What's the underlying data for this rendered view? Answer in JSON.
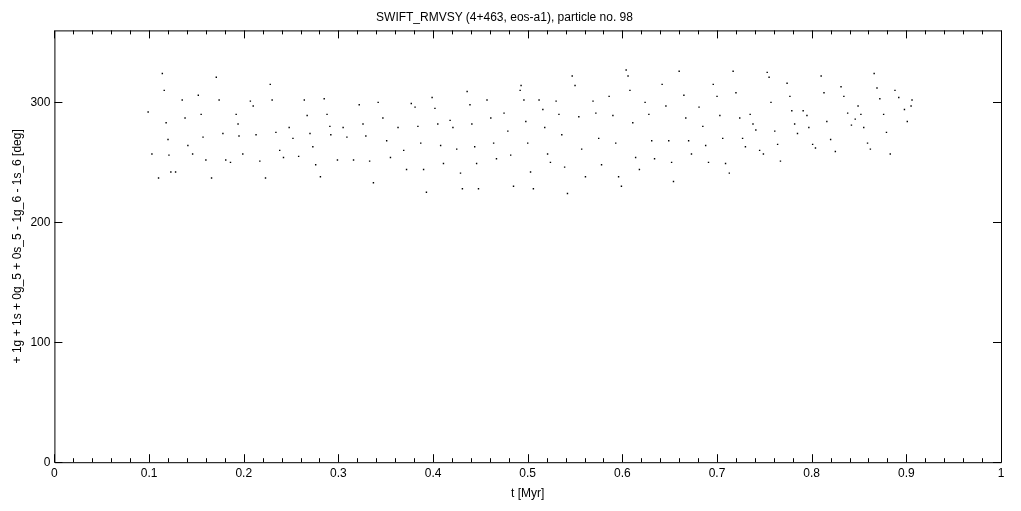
{
  "chart_data": {
    "type": "scatter",
    "title": "SWIFT_RMVSY (4+463, eos-a1), particle no. 98",
    "xlabel": "t [Myr]",
    "ylabel": "+ 1g + 1s + 0g_5 + 0s_5 - 1g_6 - 1s_6 [deg]",
    "xlim": [
      0,
      1
    ],
    "ylim": [
      0,
      360
    ],
    "xticks": [
      0,
      {
        "value": 0.02,
        "label": null
      },
      {
        "value": 0.04,
        "label": null
      },
      {
        "value": 0.06,
        "label": null
      },
      {
        "value": 0.08,
        "label": null
      },
      0.1,
      {
        "value": 0.12,
        "label": null
      },
      {
        "value": 0.14,
        "label": null
      },
      {
        "value": 0.16,
        "label": null
      },
      {
        "value": 0.18,
        "label": null
      },
      0.2,
      {
        "value": 0.22,
        "label": null
      },
      {
        "value": 0.24,
        "label": null
      },
      {
        "value": 0.26,
        "label": null
      },
      {
        "value": 0.28,
        "label": null
      },
      0.3,
      {
        "value": 0.32,
        "label": null
      },
      {
        "value": 0.34,
        "label": null
      },
      {
        "value": 0.36,
        "label": null
      },
      {
        "value": 0.38,
        "label": null
      },
      0.4,
      {
        "value": 0.42,
        "label": null
      },
      {
        "value": 0.44,
        "label": null
      },
      {
        "value": 0.46,
        "label": null
      },
      {
        "value": 0.48,
        "label": null
      },
      0.5,
      {
        "value": 0.52,
        "label": null
      },
      {
        "value": 0.54,
        "label": null
      },
      {
        "value": 0.56,
        "label": null
      },
      {
        "value": 0.58,
        "label": null
      },
      0.6,
      {
        "value": 0.62,
        "label": null
      },
      {
        "value": 0.64,
        "label": null
      },
      {
        "value": 0.66,
        "label": null
      },
      {
        "value": 0.68,
        "label": null
      },
      0.7,
      {
        "value": 0.72,
        "label": null
      },
      {
        "value": 0.74,
        "label": null
      },
      {
        "value": 0.76,
        "label": null
      },
      {
        "value": 0.78,
        "label": null
      },
      0.8,
      {
        "value": 0.82,
        "label": null
      },
      {
        "value": 0.84,
        "label": null
      },
      {
        "value": 0.86,
        "label": null
      },
      {
        "value": 0.88,
        "label": null
      },
      0.9,
      {
        "value": 0.92,
        "label": null
      },
      {
        "value": 0.94,
        "label": null
      },
      {
        "value": 0.96,
        "label": null
      },
      {
        "value": 0.98,
        "label": null
      },
      1
    ],
    "yticks": [
      0,
      100,
      200,
      300
    ],
    "grid": false,
    "legend": false,
    "marker": "square",
    "series": [
      {
        "color": "#000000",
        "x": [
          0.099,
          0.103,
          0.11,
          0.114,
          0.116,
          0.118,
          0.12,
          0.121,
          0.123,
          0.128,
          0.135,
          0.138,
          0.141,
          0.146,
          0.152,
          0.155,
          0.157,
          0.16,
          0.166,
          0.171,
          0.174,
          0.178,
          0.181,
          0.186,
          0.192,
          0.194,
          0.195,
          0.199,
          0.207,
          0.21,
          0.213,
          0.217,
          0.223,
          0.228,
          0.23,
          0.234,
          0.238,
          0.242,
          0.248,
          0.252,
          0.258,
          0.264,
          0.267,
          0.27,
          0.273,
          0.276,
          0.281,
          0.285,
          0.288,
          0.291,
          0.292,
          0.299,
          0.305,
          0.309,
          0.316,
          0.322,
          0.326,
          0.329,
          0.333,
          0.337,
          0.342,
          0.347,
          0.351,
          0.355,
          0.363,
          0.369,
          0.372,
          0.377,
          0.381,
          0.384,
          0.387,
          0.39,
          0.393,
          0.399,
          0.402,
          0.405,
          0.408,
          0.411,
          0.418,
          0.421,
          0.425,
          0.429,
          0.431,
          0.436,
          0.439,
          0.441,
          0.444,
          0.446,
          0.448,
          0.457,
          0.461,
          0.464,
          0.467,
          0.475,
          0.479,
          0.482,
          0.485,
          0.492,
          0.493,
          0.496,
          0.498,
          0.5,
          0.503,
          0.506,
          0.512,
          0.516,
          0.518,
          0.521,
          0.524,
          0.53,
          0.533,
          0.536,
          0.539,
          0.542,
          0.547,
          0.55,
          0.554,
          0.557,
          0.561,
          0.569,
          0.572,
          0.575,
          0.578,
          0.586,
          0.59,
          0.593,
          0.596,
          0.599,
          0.604,
          0.606,
          0.608,
          0.611,
          0.614,
          0.618,
          0.624,
          0.628,
          0.631,
          0.634,
          0.642,
          0.646,
          0.649,
          0.652,
          0.654,
          0.66,
          0.665,
          0.667,
          0.67,
          0.673,
          0.681,
          0.685,
          0.688,
          0.691,
          0.696,
          0.7,
          0.703,
          0.706,
          0.709,
          0.713,
          0.717,
          0.72,
          0.724,
          0.727,
          0.73,
          0.735,
          0.738,
          0.741,
          0.745,
          0.749,
          0.753,
          0.755,
          0.757,
          0.761,
          0.764,
          0.767,
          0.774,
          0.777,
          0.779,
          0.782,
          0.785,
          0.791,
          0.795,
          0.797,
          0.801,
          0.804,
          0.81,
          0.813,
          0.816,
          0.82,
          0.825,
          0.831,
          0.834,
          0.838,
          0.842,
          0.846,
          0.849,
          0.852,
          0.855,
          0.859,
          0.862,
          0.866,
          0.869,
          0.872,
          0.876,
          0.879,
          0.883,
          0.888,
          0.892,
          0.898,
          0.901,
          0.905,
          0.906
        ],
        "values": [
          292,
          257,
          237,
          324,
          310,
          283,
          269,
          256,
          242,
          242,
          302,
          287,
          264,
          257,
          306,
          290,
          271,
          252,
          237,
          321,
          302,
          274,
          252,
          250,
          290,
          282,
          272,
          257,
          301,
          297,
          273,
          251,
          237,
          315,
          302,
          275,
          260,
          254,
          279,
          270,
          255,
          302,
          289,
          274,
          263,
          248,
          238,
          303,
          290,
          280,
          273,
          252,
          279,
          271,
          252,
          298,
          282,
          272,
          251,
          233,
          300,
          287,
          268,
          254,
          279,
          260,
          244,
          299,
          296,
          280,
          266,
          244,
          225,
          304,
          295,
          282,
          264,
          249,
          285,
          279,
          261,
          241,
          228,
          309,
          298,
          282,
          263,
          249,
          228,
          302,
          287,
          266,
          253,
          291,
          276,
          256,
          230,
          310,
          314,
          302,
          284,
          266,
          242,
          228,
          302,
          294,
          279,
          257,
          250,
          301,
          290,
          273,
          246,
          224,
          322,
          314,
          288,
          261,
          238,
          301,
          291,
          270,
          248,
          305,
          289,
          266,
          238,
          230,
          327,
          322,
          310,
          283,
          254,
          244,
          300,
          290,
          268,
          253,
          315,
          297,
          268,
          250,
          234,
          326,
          306,
          287,
          268,
          257,
          296,
          280,
          264,
          250,
          315,
          305,
          289,
          270,
          249,
          241,
          326,
          308,
          287,
          270,
          263,
          290,
          282,
          277,
          260,
          257,
          325,
          321,
          300,
          276,
          265,
          251,
          316,
          305,
          293,
          282,
          274,
          293,
          289,
          279,
          265,
          262,
          322,
          308,
          284,
          269,
          259,
          313,
          305,
          291,
          281,
          286,
          297,
          290,
          279,
          266,
          261,
          324,
          312,
          303,
          290,
          275,
          257,
          310,
          304,
          294,
          284,
          297,
          302
        ]
      }
    ]
  }
}
